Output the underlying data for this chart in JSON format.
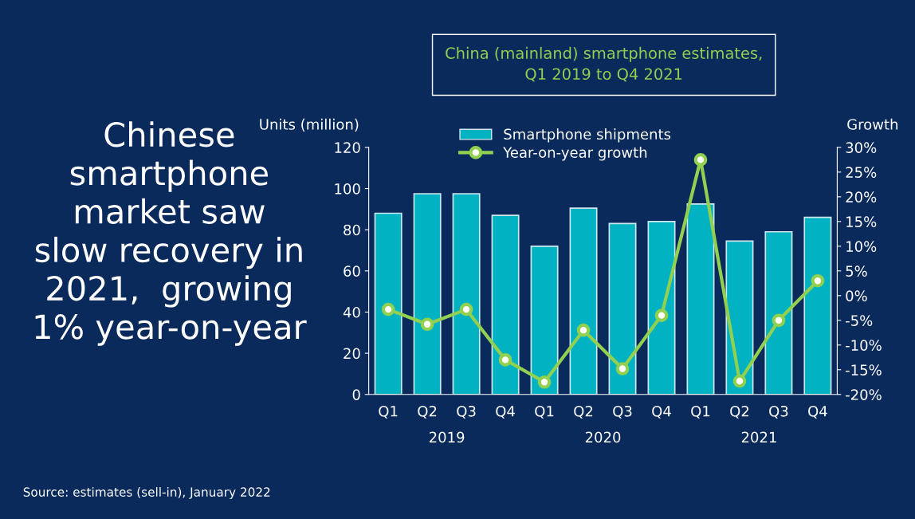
{
  "chart_data": {
    "type": "bar",
    "title": "China (mainland) smartphone estimates,\nQ1 2019 to Q4 2021",
    "categories": [
      "Q1",
      "Q2",
      "Q3",
      "Q4",
      "Q1",
      "Q2",
      "Q3",
      "Q4",
      "Q1",
      "Q2",
      "Q3",
      "Q4"
    ],
    "series": [
      {
        "name": "Smartphone shipments",
        "color": "#00b2c2",
        "values": [
          88,
          97.5,
          97.5,
          87,
          72,
          90.5,
          83,
          84,
          92.5,
          74.5,
          79,
          86
        ]
      },
      {
        "name": "Year-on-year growth",
        "type": "line",
        "axis": "y2",
        "color": "#92d050",
        "values": [
          -2.8,
          -5.8,
          -2.8,
          -13,
          -17.5,
          -7,
          -14.8,
          -4,
          27.5,
          -17.3,
          -5,
          3
        ]
      }
    ],
    "ylabel": "Units (million)",
    "y2label": "Growth",
    "ylim": [
      0,
      120
    ],
    "yticks": [
      0,
      20,
      40,
      60,
      80,
      100,
      120
    ],
    "y2lim": [
      -20,
      30
    ],
    "y2ticks": [
      {
        "value": -20,
        "label": "-20%"
      },
      {
        "value": -15,
        "label": "-15%"
      },
      {
        "value": -10,
        "label": "-10%"
      },
      {
        "value": -5,
        "label": "-5%"
      },
      {
        "value": 0,
        "label": "0%"
      },
      {
        "value": 5,
        "label": "5%"
      },
      {
        "value": 10,
        "label": "10%"
      },
      {
        "value": 15,
        "label": "15%"
      },
      {
        "value": 20,
        "label": "20%"
      },
      {
        "value": 25,
        "label": "25%"
      },
      {
        "value": 30,
        "label": "30%"
      }
    ],
    "marker": "circle",
    "line_style": "solid",
    "grid": false,
    "legend": "top",
    "annotations": [
      "2019",
      "2020",
      "2021",
      "Chinese\nsmartphone\nmarket saw\nslow recovery in\n2021,  growing\n1% year-on-year",
      "Source: estimates (sell-in), January 2022"
    ]
  }
}
